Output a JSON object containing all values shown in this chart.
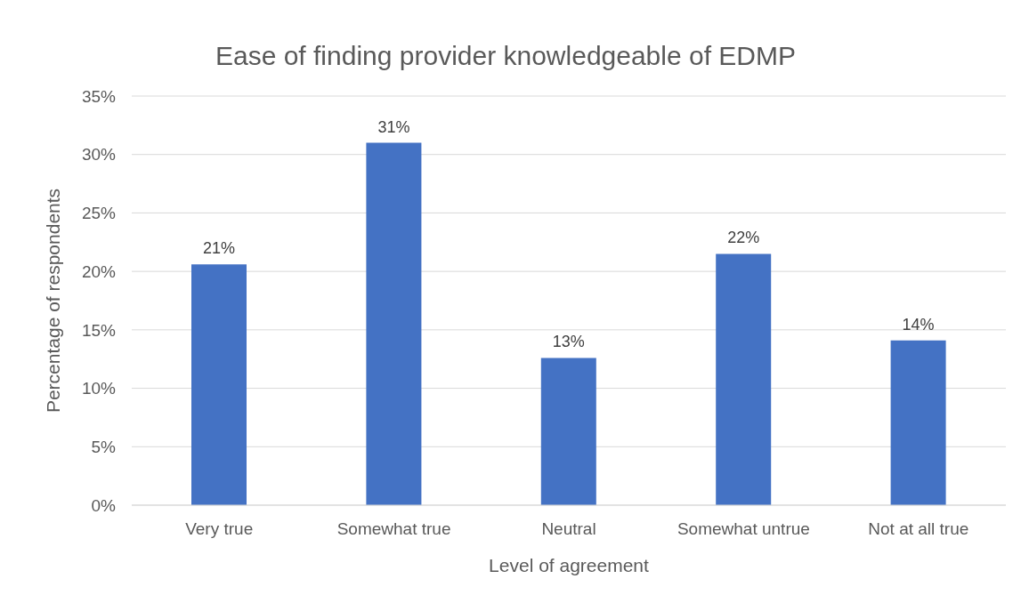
{
  "chart_data": {
    "type": "bar",
    "title": "Ease of finding provider knowledgeable of EDMP",
    "xlabel": "Level of agreement",
    "ylabel": "Percentage of respondents",
    "categories": [
      "Very true",
      "Somewhat true",
      "Neutral",
      "Somewhat untrue",
      "Not at all true"
    ],
    "values": [
      20.6,
      31.0,
      12.6,
      21.5,
      14.1
    ],
    "value_labels": [
      "21%",
      "31%",
      "13%",
      "22%",
      "14%"
    ],
    "color": "#4472c4",
    "ylim": [
      0,
      35
    ],
    "yticks": [
      {
        "value": 0,
        "label": "0%"
      },
      {
        "value": 5,
        "label": "5%"
      },
      {
        "value": 10,
        "label": "10%"
      },
      {
        "value": 15,
        "label": "15%"
      },
      {
        "value": 20,
        "label": "20%"
      },
      {
        "value": 25,
        "label": "25%"
      },
      {
        "value": 30,
        "label": "30%"
      },
      {
        "value": 35,
        "label": "35%"
      }
    ],
    "grid": "y"
  }
}
